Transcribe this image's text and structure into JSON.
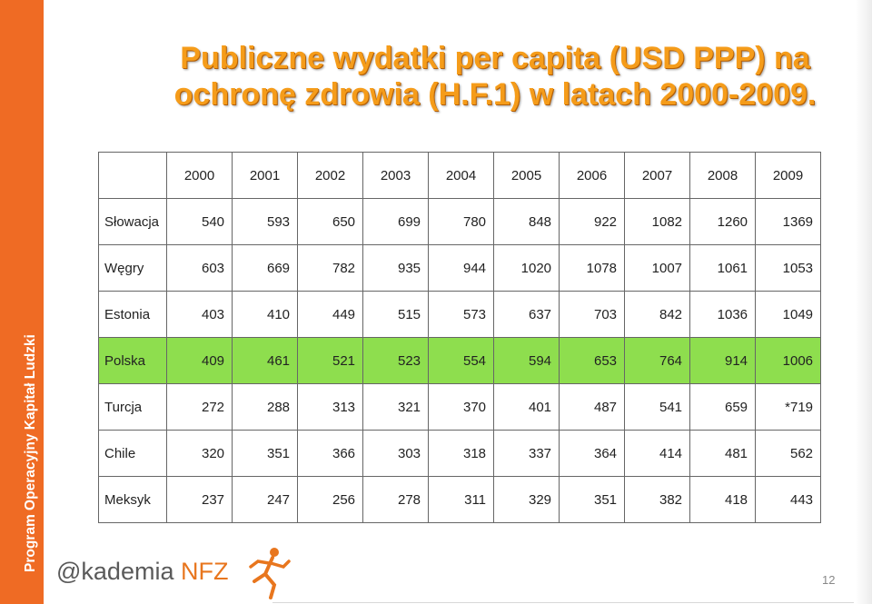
{
  "sidebar": {
    "text": "Program Operacyjny Kapitał Ludzki"
  },
  "title": {
    "line1": "Publiczne wydatki per capita (USD PPP) na",
    "line2": "ochronę zdrowia (H.F.1) w latach 2000-2009."
  },
  "table": {
    "header": [
      "",
      "2000",
      "2001",
      "2002",
      "2003",
      "2004",
      "2005",
      "2006",
      "2007",
      "2008",
      "2009"
    ],
    "rows": [
      {
        "country": "Słowacja",
        "values": [
          "540",
          "593",
          "650",
          "699",
          "780",
          "848",
          "922",
          "1082",
          "1260",
          "1369"
        ],
        "highlight": false
      },
      {
        "country": "Węgry",
        "values": [
          "603",
          "669",
          "782",
          "935",
          "944",
          "1020",
          "1078",
          "1007",
          "1061",
          "1053"
        ],
        "highlight": false
      },
      {
        "country": "Estonia",
        "values": [
          "403",
          "410",
          "449",
          "515",
          "573",
          "637",
          "703",
          "842",
          "1036",
          "1049"
        ],
        "highlight": false
      },
      {
        "country": "Polska",
        "values": [
          "409",
          "461",
          "521",
          "523",
          "554",
          "594",
          "653",
          "764",
          "914",
          "1006"
        ],
        "highlight": true
      },
      {
        "country": "Turcja",
        "values": [
          "272",
          "288",
          "313",
          "321",
          "370",
          "401",
          "487",
          "541",
          "659",
          "*719"
        ],
        "highlight": false
      },
      {
        "country": "Chile",
        "values": [
          "320",
          "351",
          "366",
          "303",
          "318",
          "337",
          "364",
          "414",
          "481",
          "562"
        ],
        "highlight": false
      },
      {
        "country": "Meksyk",
        "values": [
          "237",
          "247",
          "256",
          "278",
          "311",
          "329",
          "351",
          "382",
          "418",
          "443"
        ],
        "highlight": false
      }
    ],
    "highlight_color": "#8ede4e"
  },
  "logo": {
    "prefix": "@kademia",
    "suffix": "NFZ",
    "icon": "running-figure-icon"
  },
  "page_number": "12",
  "colors": {
    "sidebar": "#ef6b24",
    "title": "#f59c1a"
  }
}
